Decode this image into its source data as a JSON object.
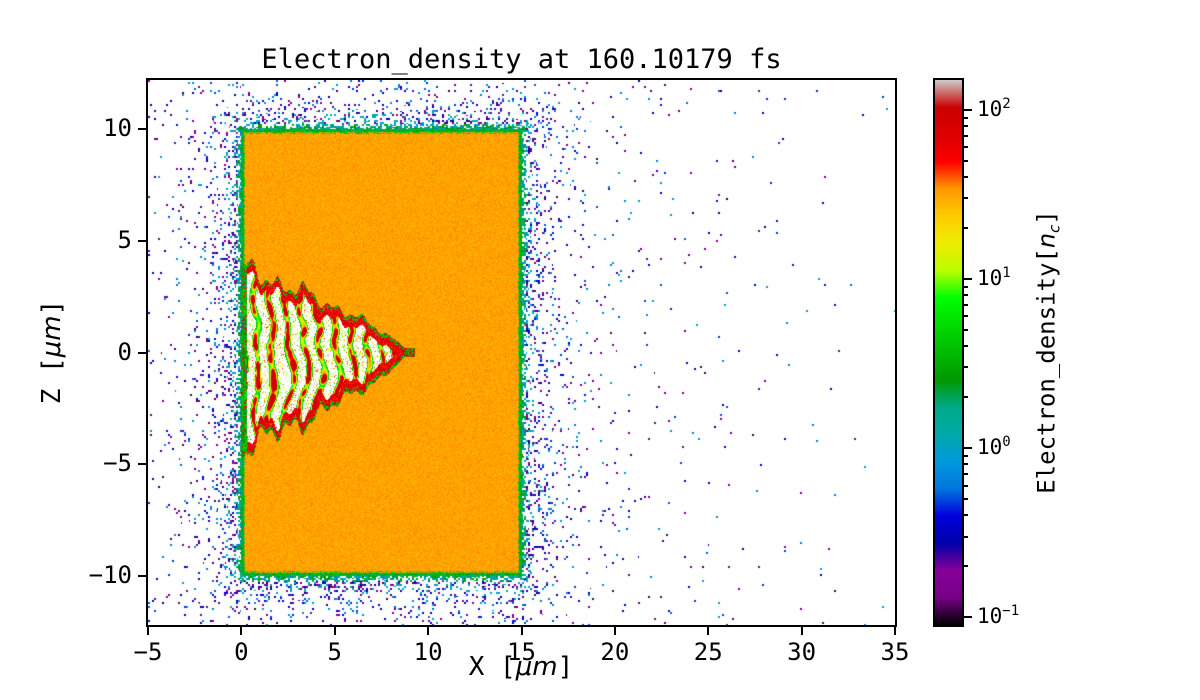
{
  "figure": {
    "title": "Electron_density at 160.10179 fs",
    "labels": {
      "x": {
        "pre": "X [",
        "it": "μm",
        "post": "]"
      },
      "y": {
        "pre": "Z [",
        "it": "μm",
        "post": "]"
      },
      "cbar": {
        "pre": "Electron_density[",
        "it": "n",
        "sub": "c",
        "post": "]"
      }
    },
    "x_ticks": [
      -5,
      0,
      5,
      10,
      15,
      20,
      25,
      30,
      35
    ],
    "y_ticks": [
      -10,
      -5,
      0,
      5,
      10
    ],
    "cbar_ticks": [
      {
        "value": 100,
        "base": "10",
        "exp": "2"
      },
      {
        "value": 10,
        "base": "10",
        "exp": "1"
      },
      {
        "value": 1,
        "base": "10",
        "exp": "0"
      },
      {
        "value": 0.1,
        "base": "10",
        "exp": "−1"
      }
    ]
  },
  "chart_data": {
    "type": "heatmap",
    "title": "Electron_density at 160.10179 fs",
    "time_fs": 160.10179,
    "xlabel": "X [μm]",
    "ylabel": "Z [μm]",
    "xlim": [
      -5,
      35
    ],
    "ylim": [
      -12.2,
      12.2
    ],
    "grid": false,
    "colorbar": {
      "label": "Electron_density[n_c]",
      "scale": "log",
      "vmin": 0.09,
      "vmax": 150,
      "tick_values": [
        0.1,
        1,
        10,
        100
      ],
      "colormap": "nipy_spectral",
      "background": "white"
    },
    "features": {
      "plasma_slab": {
        "x_range": [
          0,
          15
        ],
        "z_range": [
          -10,
          10
        ],
        "density_nc": 30
      },
      "edge_sheath": {
        "width_um": 0.2,
        "density_nc": 2
      },
      "cavity": {
        "shape": "wedge",
        "apex_x": 8.7,
        "mouth_half_width_top": 3.6,
        "mouth_half_width_bottom": 4.2,
        "rim_density_nc": 70,
        "filament_spacing_um": 0.85,
        "filament_density_nc": 40
      },
      "scattered_electrons": {
        "density_nc_range": [
          0.1,
          1
        ],
        "halo_scale_um": 0.9,
        "extent_x": [
          -5,
          31
        ],
        "extent_z": [
          -12.2,
          12.2
        ]
      }
    }
  }
}
